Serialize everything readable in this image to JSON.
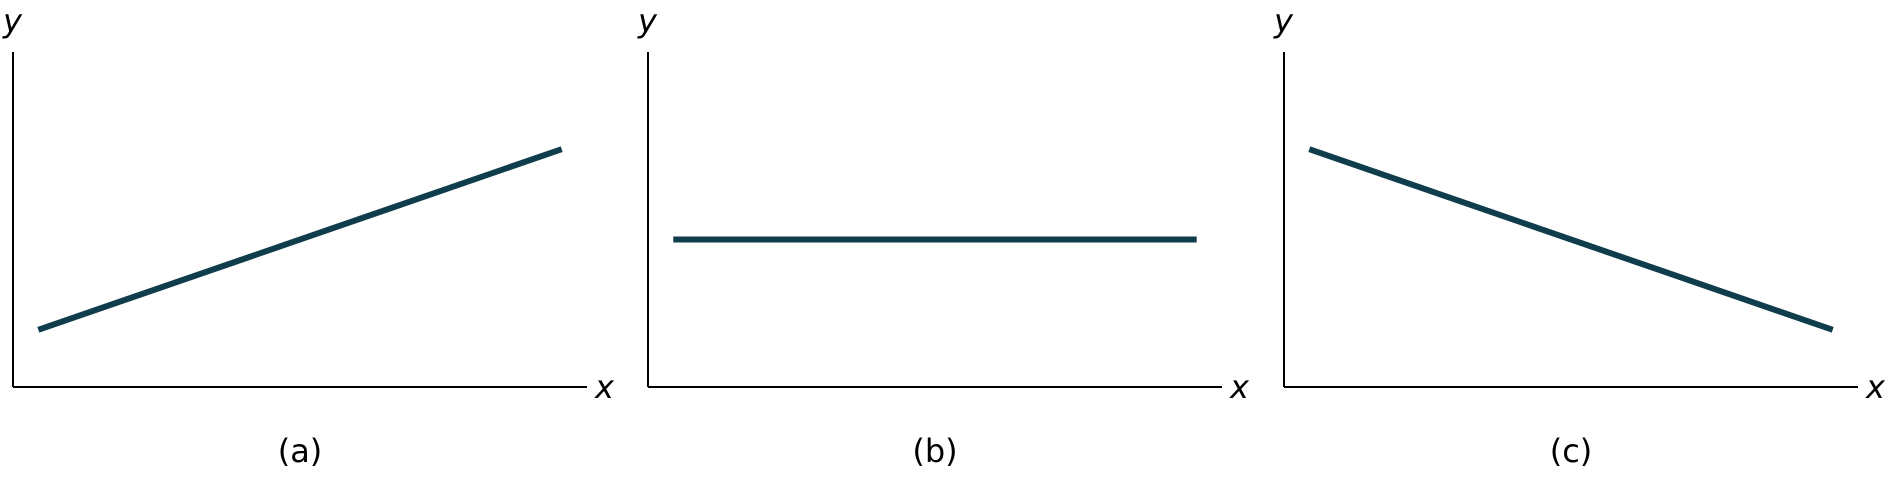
{
  "colors": {
    "line": "#0f3d4c",
    "axis": "#000000"
  },
  "chart_data": [
    {
      "type": "line",
      "caption": "(a)",
      "xlabel": "x",
      "ylabel": "y",
      "xlim": [
        0,
        100
      ],
      "ylim": [
        0,
        100
      ],
      "grid": false,
      "series": [
        {
          "x": [
            4.4,
            95.6
          ],
          "y": [
            19.4,
            80.6
          ]
        }
      ]
    },
    {
      "type": "line",
      "caption": "(b)",
      "xlabel": "x",
      "ylabel": "y",
      "xlim": [
        0,
        100
      ],
      "ylim": [
        0,
        100
      ],
      "grid": false,
      "series": [
        {
          "x": [
            4.4,
            95.6
          ],
          "y": [
            50,
            50
          ]
        }
      ]
    },
    {
      "type": "line",
      "caption": "(c)",
      "xlabel": "x",
      "ylabel": "y",
      "xlim": [
        0,
        100
      ],
      "ylim": [
        0,
        100
      ],
      "grid": false,
      "series": [
        {
          "x": [
            4.4,
            95.6
          ],
          "y": [
            80.6,
            19.4
          ]
        }
      ]
    }
  ]
}
